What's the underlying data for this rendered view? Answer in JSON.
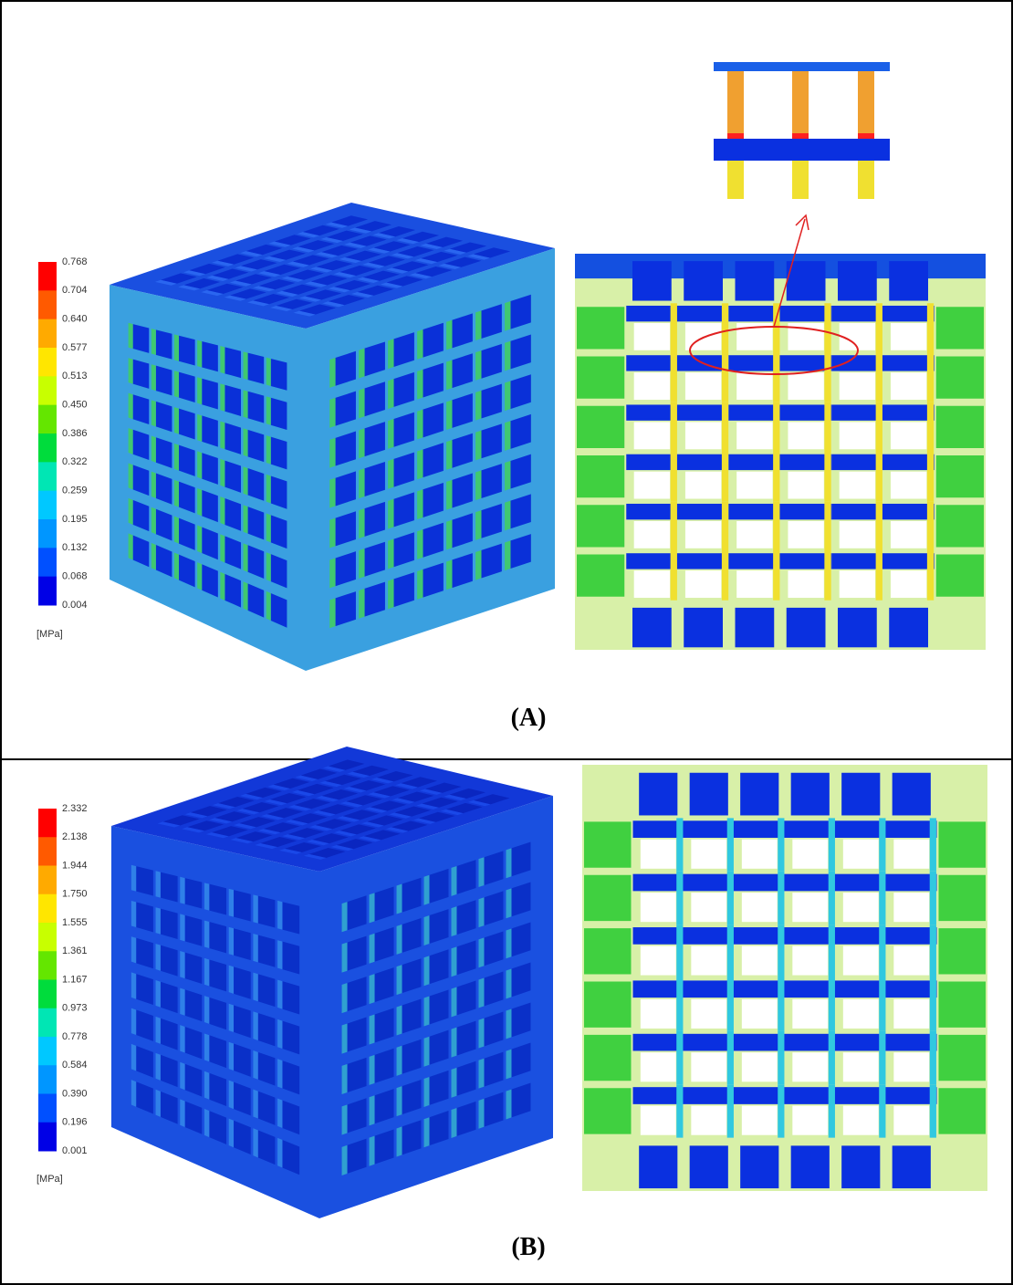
{
  "panels": [
    {
      "label": "(A)",
      "legend": {
        "ticks": [
          "0.768",
          "0.704",
          "0.640",
          "0.577",
          "0.513",
          "0.450",
          "0.386",
          "0.322",
          "0.259",
          "0.195",
          "0.132",
          "0.068",
          "0.004"
        ],
        "unit": "[MPa]"
      }
    },
    {
      "label": "(B)",
      "legend": {
        "ticks": [
          "2.332",
          "2.138",
          "1.944",
          "1.750",
          "1.555",
          "1.361",
          "1.167",
          "0.973",
          "0.778",
          "0.584",
          "0.390",
          "0.196",
          "0.001"
        ],
        "unit": "[MPa]"
      }
    }
  ]
}
